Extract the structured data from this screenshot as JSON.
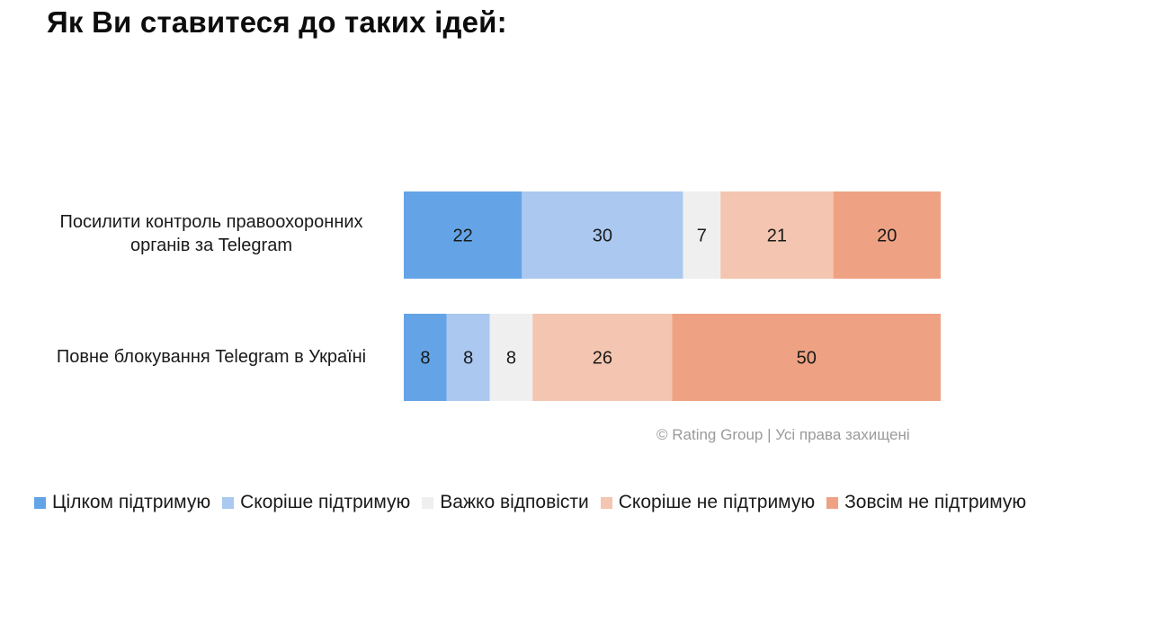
{
  "chart_data": {
    "type": "bar",
    "orientation": "horizontal",
    "stacked": true,
    "title": "Як Ви ставитеся до таких ідей:",
    "categories": [
      "Посилити контроль правоохоронних органів за Telegram",
      "Повне блокування Telegram в Україні"
    ],
    "series": [
      {
        "name": "Цілком підтримую",
        "values": [
          22,
          8
        ],
        "color": "#64a4e6"
      },
      {
        "name": "Скоріше підтримую",
        "values": [
          30,
          8
        ],
        "color": "#aac8f0"
      },
      {
        "name": "Важко відповісти",
        "values": [
          7,
          8
        ],
        "color": "#efefef"
      },
      {
        "name": "Скоріше не підтримую",
        "values": [
          21,
          26
        ],
        "color": "#f4c5b0"
      },
      {
        "name": "Зовсім не підтримую",
        "values": [
          20,
          50
        ],
        "color": "#efa283"
      }
    ],
    "xlim": [
      0,
      100
    ],
    "legend_position": "bottom",
    "source": "© Rating Group | Усі права захищені"
  }
}
